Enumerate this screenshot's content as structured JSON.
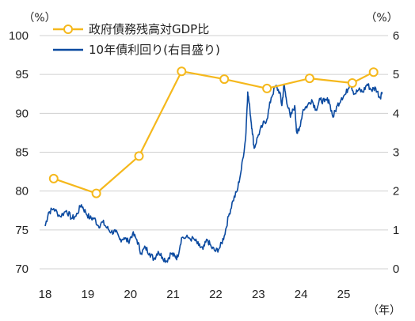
{
  "chart_data": {
    "type": "line",
    "left_unit": "（%）",
    "right_unit": "（%）",
    "x_unit": "（年）",
    "x_ticks": [
      "18",
      "19",
      "20",
      "21",
      "22",
      "23",
      "24",
      "25"
    ],
    "y_left_ticks": [
      "70",
      "75",
      "80",
      "85",
      "90",
      "95",
      "100"
    ],
    "y_right_ticks": [
      "0",
      "1",
      "2",
      "3",
      "4",
      "5",
      "6"
    ],
    "x_range": [
      2018,
      2025.9
    ],
    "y_left_range": [
      70,
      100
    ],
    "y_right_range": [
      0,
      6
    ],
    "legend_position": "top",
    "series": [
      {
        "name": "政府債務残高対GDP比",
        "axis": "left",
        "color": "#f5b81c",
        "marker": "open-circle",
        "x": [
          2018.2,
          2019.2,
          2020.2,
          2021.2,
          2022.2,
          2023.2,
          2024.2,
          2025.2,
          2025.7
        ],
        "y": [
          81.6,
          79.7,
          84.5,
          95.4,
          94.4,
          93.2,
          94.5,
          93.9,
          95.3
        ]
      },
      {
        "name": "10年債利回り(右目盛り)",
        "axis": "right",
        "color": "#0b4aa0",
        "x": [
          2018.0,
          2018.08,
          2018.2,
          2018.35,
          2018.5,
          2018.62,
          2018.72,
          2018.85,
          2018.95,
          2019.05,
          2019.15,
          2019.25,
          2019.35,
          2019.45,
          2019.55,
          2019.65,
          2019.75,
          2019.85,
          2019.95,
          2020.05,
          2020.15,
          2020.25,
          2020.35,
          2020.45,
          2020.55,
          2020.65,
          2020.75,
          2020.85,
          2020.95,
          2021.05,
          2021.1,
          2021.2,
          2021.35,
          2021.5,
          2021.6,
          2021.7,
          2021.8,
          2021.9,
          2022.0,
          2022.1,
          2022.2,
          2022.3,
          2022.4,
          2022.5,
          2022.6,
          2022.7,
          2022.75,
          2022.8,
          2022.85,
          2022.9,
          2023.0,
          2023.1,
          2023.2,
          2023.3,
          2023.4,
          2023.5,
          2023.55,
          2023.6,
          2023.65,
          2023.75,
          2023.85,
          2023.9,
          2023.95,
          2024.05,
          2024.15,
          2024.25,
          2024.35,
          2024.45,
          2024.55,
          2024.65,
          2024.75,
          2024.85,
          2024.95,
          2025.05,
          2025.15,
          2025.25,
          2025.35,
          2025.45,
          2025.55,
          2025.65,
          2025.75,
          2025.85,
          2025.9
        ],
        "y": [
          1.1,
          1.45,
          1.55,
          1.35,
          1.5,
          1.3,
          1.35,
          1.65,
          1.45,
          1.3,
          1.3,
          1.1,
          1.2,
          1.05,
          0.95,
          0.95,
          0.75,
          0.8,
          0.7,
          0.9,
          0.75,
          0.4,
          0.55,
          0.4,
          0.25,
          0.45,
          0.3,
          0.2,
          0.4,
          0.3,
          0.3,
          0.8,
          0.8,
          0.75,
          0.6,
          0.5,
          0.75,
          0.55,
          0.45,
          0.55,
          0.85,
          1.35,
          1.75,
          2.0,
          2.55,
          3.35,
          4.55,
          4.1,
          3.6,
          3.1,
          3.45,
          3.7,
          3.85,
          4.4,
          4.7,
          4.55,
          4.2,
          4.75,
          4.4,
          3.9,
          4.2,
          3.5,
          3.55,
          4.1,
          4.2,
          4.35,
          4.1,
          4.35,
          4.3,
          4.35,
          3.9,
          4.2,
          4.4,
          4.5,
          4.8,
          4.5,
          4.6,
          4.55,
          4.75,
          4.6,
          4.65,
          4.4,
          4.55
        ]
      }
    ]
  }
}
